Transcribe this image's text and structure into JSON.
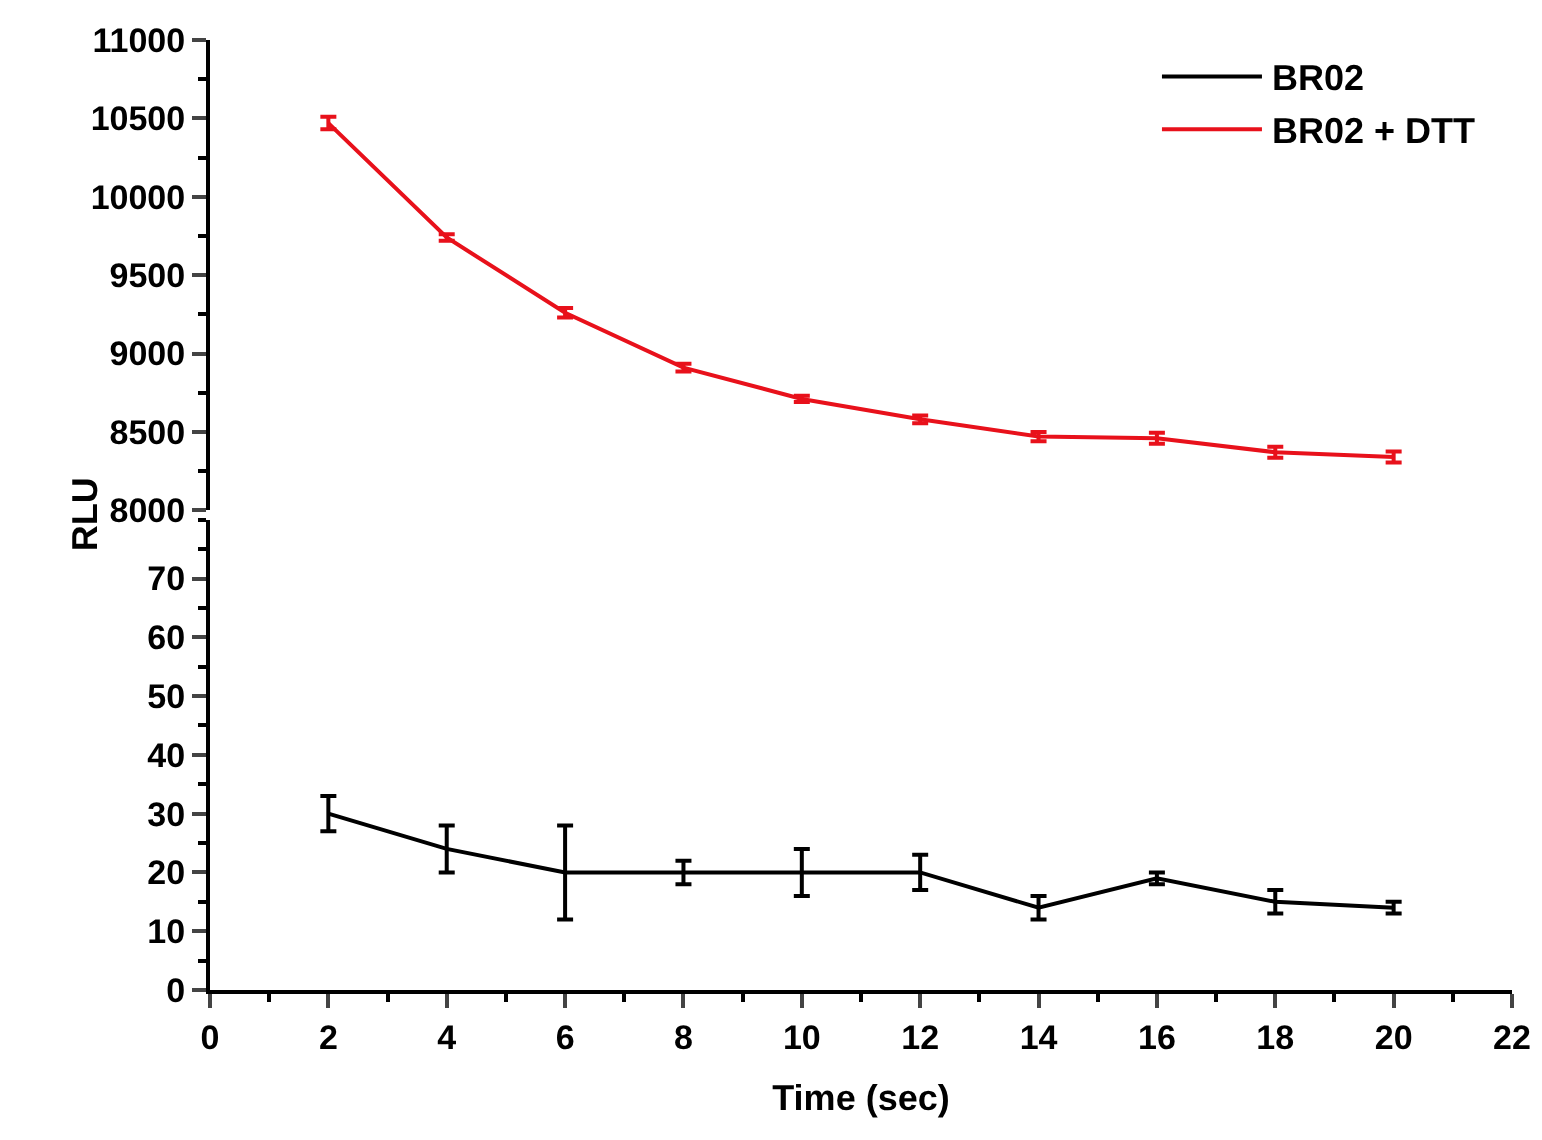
{
  "chart_data": [
    {
      "type": "line",
      "x": [
        2,
        4,
        6,
        8,
        10,
        12,
        14,
        16,
        18,
        20
      ],
      "xlim": [
        0,
        22
      ],
      "ylim": [
        8000,
        11000
      ],
      "yticks": [
        8000,
        8500,
        9000,
        9500,
        10000,
        10500,
        11000
      ],
      "tick_labels": "y",
      "legend": "top right",
      "line_style": "solid",
      "series": [
        {
          "name": "BR02 + DTT",
          "color": "#e8111b",
          "values": [
            10470,
            9740,
            9260,
            8910,
            8710,
            8580,
            8470,
            8460,
            8370,
            8340
          ],
          "errors": [
            40,
            20,
            30,
            25,
            20,
            25,
            30,
            35,
            35,
            35
          ]
        }
      ]
    },
    {
      "type": "line",
      "x": [
        2,
        4,
        6,
        8,
        10,
        12,
        14,
        16,
        18,
        20
      ],
      "xlim": [
        0,
        22
      ],
      "xticks": [
        0,
        2,
        4,
        6,
        8,
        10,
        12,
        14,
        16,
        18,
        20,
        22
      ],
      "ylim": [
        0,
        80
      ],
      "yticks": [
        0,
        10,
        20,
        30,
        40,
        50,
        60,
        70
      ],
      "xlabel": "Time (sec)",
      "ylabel": "RLU",
      "line_style": "solid",
      "series": [
        {
          "name": "BR02",
          "color": "#000000",
          "values": [
            30,
            24,
            20,
            20,
            20,
            20,
            14,
            19,
            15,
            14
          ],
          "errors": [
            3,
            4,
            8,
            2,
            4,
            3,
            2,
            1,
            2,
            1
          ]
        }
      ]
    }
  ]
}
